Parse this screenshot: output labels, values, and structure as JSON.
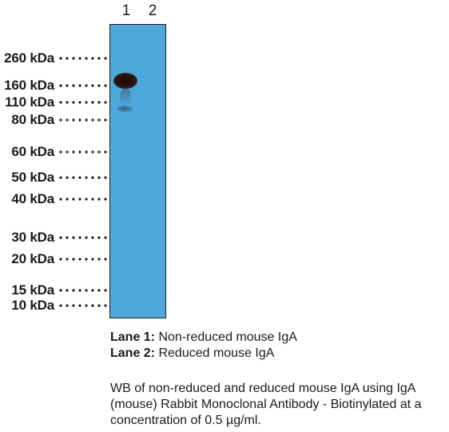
{
  "lanes": [
    "1",
    "2"
  ],
  "markers": [
    {
      "label": "260 kDa"
    },
    {
      "label": "160 kDa"
    },
    {
      "label": "110 kDa"
    },
    {
      "label": "80 kDa"
    },
    {
      "label": "60 kDa"
    },
    {
      "label": "50 kDa"
    },
    {
      "label": "40 kDa"
    },
    {
      "label": "30 kDa"
    },
    {
      "label": "20 kDa"
    },
    {
      "label": "15 kDa"
    },
    {
      "label": "10 kDa"
    }
  ],
  "legend": {
    "lane1_key": "Lane 1:",
    "lane1_text": " Non-reduced mouse IgA",
    "lane2_key": "Lane 2:",
    "lane2_text": " Reduced mouse IgA"
  },
  "caption": "WB of non-reduced and reduced mouse IgA using IgA (mouse) Rabbit Monoclonal Antibody - Biotinylated at a concentration of 0.5 µg/ml.",
  "colors": {
    "membrane": "#4ea8dc",
    "band": "#2a140c"
  }
}
